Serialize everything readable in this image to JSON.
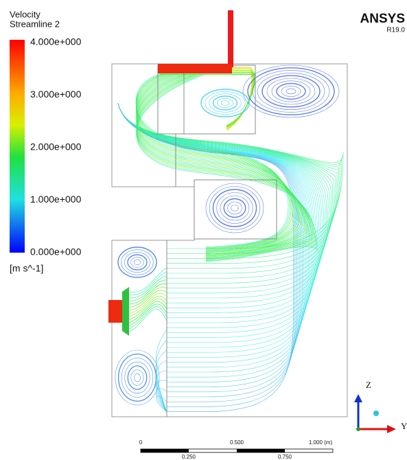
{
  "legend": {
    "title": "Velocity",
    "subtitle": "Streamline 2",
    "labels": [
      "4.000e+000",
      "3.000e+000",
      "2.000e+000",
      "1.000e+000",
      "0.000e+000"
    ],
    "unit": "[m s^-1]"
  },
  "brand": {
    "name": "ANSYS",
    "version": "R19.0"
  },
  "scale_bar": {
    "top_labels": [
      "0",
      "0.500",
      "1.000 (m)"
    ],
    "bottom_labels": [
      "0.250",
      "0.750"
    ]
  },
  "axes": {
    "vertical": "Z",
    "horizontal": "Y"
  }
}
